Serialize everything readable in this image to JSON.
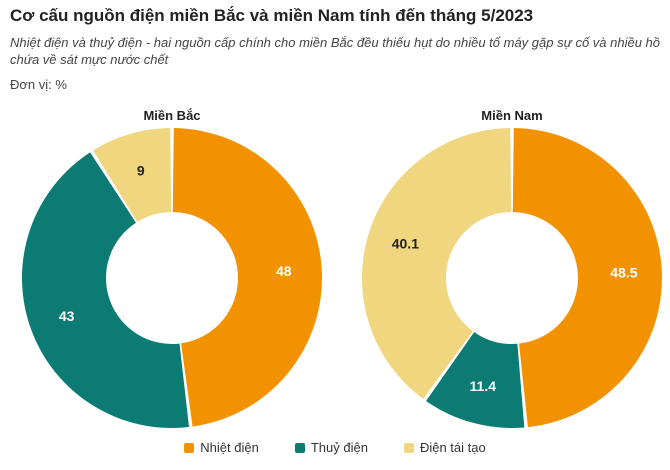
{
  "header": {
    "title": "Cơ cấu nguồn điện miền Bắc và miền Nam tính đến tháng 5/2023",
    "subtitle": "Nhiệt điện và thuỷ điện - hai nguồn cấp chính cho miền Bắc đều thiếu hụt do nhiều tổ máy gặp sự cố và nhiều hồ chứa về sát mực nước chết",
    "unit": "Đơn vị: %"
  },
  "colors": {
    "Nhiệt điện": "#f39200",
    "Thuỷ điện": "#0b7b74",
    "Điện tái tạo": "#f0d67e"
  },
  "chart_data": [
    {
      "type": "pie",
      "title": "Miền Bắc",
      "categories": [
        "Nhiệt điện",
        "Thuỷ điện",
        "Điện tái tạo"
      ],
      "values": [
        48,
        43,
        9
      ],
      "labels": [
        "48",
        "43",
        "9"
      ],
      "legend_placement": "bottom"
    },
    {
      "type": "pie",
      "title": "Miền Nam",
      "categories": [
        "Nhiệt điện",
        "Thuỷ điện",
        "Điện tái tạo"
      ],
      "values": [
        48.5,
        11.4,
        40.1
      ],
      "labels": [
        "48.5",
        "11.4",
        "40.1"
      ],
      "legend_placement": "bottom"
    }
  ],
  "legend": [
    {
      "label": "Nhiệt điện"
    },
    {
      "label": "Thuỷ điện"
    },
    {
      "label": "Điện tái tạo"
    }
  ]
}
